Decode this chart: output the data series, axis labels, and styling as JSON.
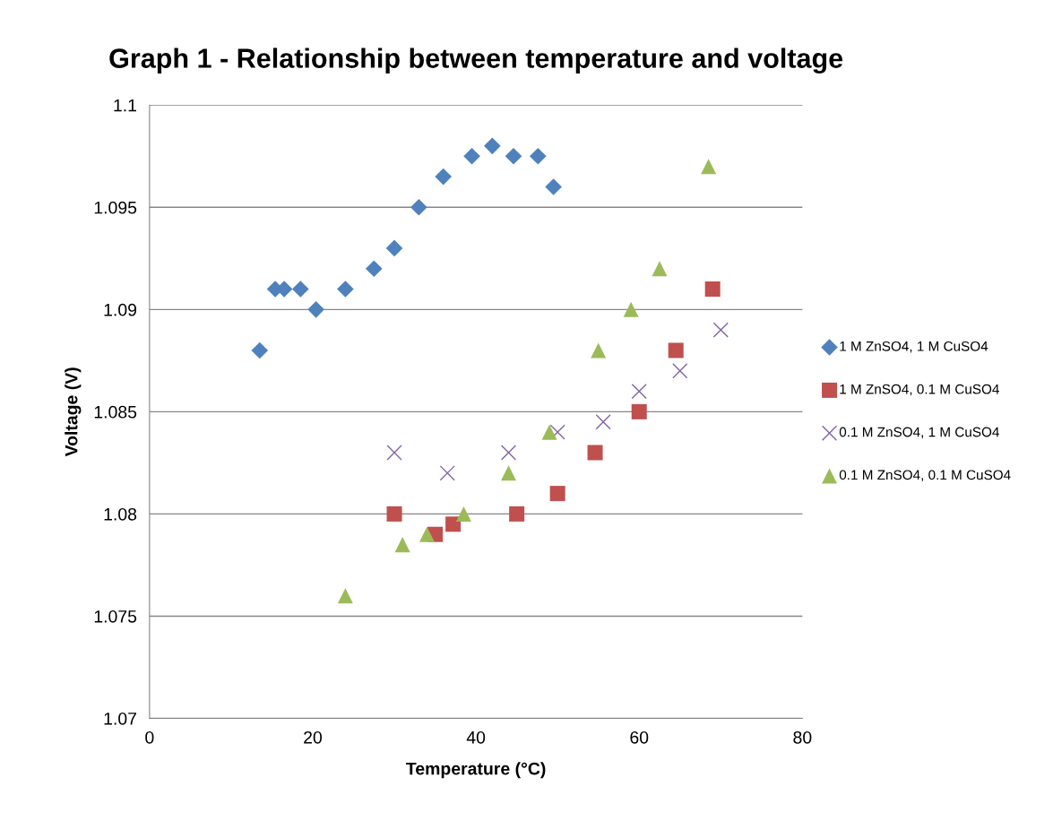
{
  "chart_data": {
    "type": "scatter",
    "title": "Graph 1 - Relationship between temperature and voltage",
    "xlabel": "Temperature (°C)",
    "ylabel": "Voltage (V)",
    "xlim": [
      0,
      80
    ],
    "xticks": [
      0,
      20,
      40,
      60,
      80
    ],
    "ylim": [
      1.07,
      1.1
    ],
    "yticks": [
      1.07,
      1.075,
      1.08,
      1.085,
      1.09,
      1.095,
      1.1
    ],
    "grid": "y",
    "legend": "right",
    "series": [
      {
        "name": "1 M ZnSO4, 1 M CuSO4",
        "color": "#4f81bd",
        "marker": "diamond",
        "x": [
          13.5,
          15.4,
          16.5,
          18.5,
          20.4,
          24,
          27.5,
          30,
          33,
          36,
          39.5,
          42,
          44.6,
          47.6,
          49.5
        ],
        "values": [
          1.088,
          1.091,
          1.091,
          1.091,
          1.09,
          1.091,
          1.092,
          1.093,
          1.095,
          1.0965,
          1.0975,
          1.098,
          1.0975,
          1.0975,
          1.096
        ]
      },
      {
        "name": "1 M ZnSO4, 0.1 M CuSO4",
        "color": "#c0504d",
        "marker": "square",
        "x": [
          30,
          35,
          37.2,
          45,
          50,
          54.6,
          60,
          64.5,
          69
        ],
        "values": [
          1.08,
          1.079,
          1.0795,
          1.08,
          1.081,
          1.083,
          1.085,
          1.088,
          1.091
        ]
      },
      {
        "name": "0.1 M ZnSO4, 1 M CuSO4",
        "color": "#8064a2",
        "marker": "cross",
        "x": [
          30,
          36.5,
          44,
          50,
          55.6,
          60,
          65,
          70
        ],
        "values": [
          1.083,
          1.082,
          1.083,
          1.084,
          1.0845,
          1.086,
          1.087,
          1.089
        ]
      },
      {
        "name": "0.1 M ZnSO4, 0.1 M CuSO4",
        "color": "#9bbb59",
        "marker": "triangle",
        "x": [
          24,
          31,
          34,
          38.5,
          44,
          49,
          55,
          59,
          62.5,
          68.5
        ],
        "values": [
          1.076,
          1.0785,
          1.079,
          1.08,
          1.082,
          1.084,
          1.088,
          1.09,
          1.092,
          1.097
        ]
      }
    ]
  }
}
